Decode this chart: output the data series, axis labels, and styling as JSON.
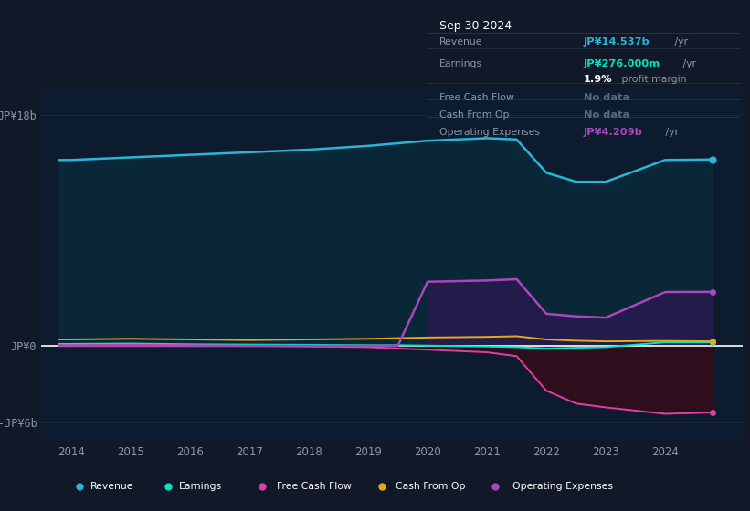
{
  "bg_color": "#111827",
  "plot_bg_color": "#0d1b2e",
  "years": [
    2013.8,
    2014,
    2015,
    2016,
    2017,
    2018,
    2019,
    2019.5,
    2020,
    2021,
    2021.5,
    2022,
    2022.5,
    2023,
    2024,
    2024.8
  ],
  "revenue": [
    14.5,
    14.5,
    14.7,
    14.9,
    15.1,
    15.3,
    15.6,
    15.8,
    16.0,
    16.2,
    16.1,
    13.5,
    12.8,
    12.8,
    14.5,
    14.537
  ],
  "earnings": [
    0.15,
    0.15,
    0.18,
    0.12,
    0.1,
    0.08,
    0.05,
    0.05,
    0.02,
    -0.05,
    -0.1,
    -0.2,
    -0.15,
    -0.1,
    0.28,
    0.276
  ],
  "free_cash_flow": [
    0.05,
    0.05,
    0.08,
    0.05,
    0.0,
    -0.05,
    -0.1,
    -0.2,
    -0.3,
    -0.5,
    -0.8,
    -3.5,
    -4.5,
    -4.8,
    -5.3,
    -5.2
  ],
  "cash_from_op": [
    0.5,
    0.5,
    0.55,
    0.5,
    0.45,
    0.5,
    0.55,
    0.6,
    0.65,
    0.7,
    0.75,
    0.5,
    0.4,
    0.35,
    0.38,
    0.35
  ],
  "op_expenses": [
    0.0,
    0.0,
    0.0,
    0.0,
    0.0,
    0.0,
    0.0,
    0.0,
    5.0,
    5.1,
    5.2,
    2.5,
    2.3,
    2.2,
    4.2,
    4.209
  ],
  "revenue_color": "#29b6d8",
  "earnings_color": "#00e5c3",
  "free_cash_flow_color": "#e040a0",
  "cash_from_op_color": "#e6a817",
  "op_expenses_color": "#ab47bc",
  "revenue_fill": "#0a2a3a",
  "op_fill": "#2a1a50",
  "fcf_fill": "#3a0a18",
  "earnings_fill": "#0a2a28",
  "ylim_min": -7.5,
  "ylim_max": 20,
  "yticks": [
    -6,
    0,
    18
  ],
  "ytick_labels": [
    "-JP¥6b",
    "JP¥0",
    "JP¥18b"
  ],
  "xtick_years": [
    2014,
    2015,
    2016,
    2017,
    2018,
    2019,
    2020,
    2021,
    2022,
    2023,
    2024
  ],
  "grid_color": "#1a2e40",
  "zero_line_color": "#ffffff",
  "tooltip_bg": "#0a0f18",
  "tooltip_border": "#2a3a50",
  "title": "Sep 30 2024",
  "legend_labels": [
    "Revenue",
    "Earnings",
    "Free Cash Flow",
    "Cash From Op",
    "Operating Expenses"
  ]
}
